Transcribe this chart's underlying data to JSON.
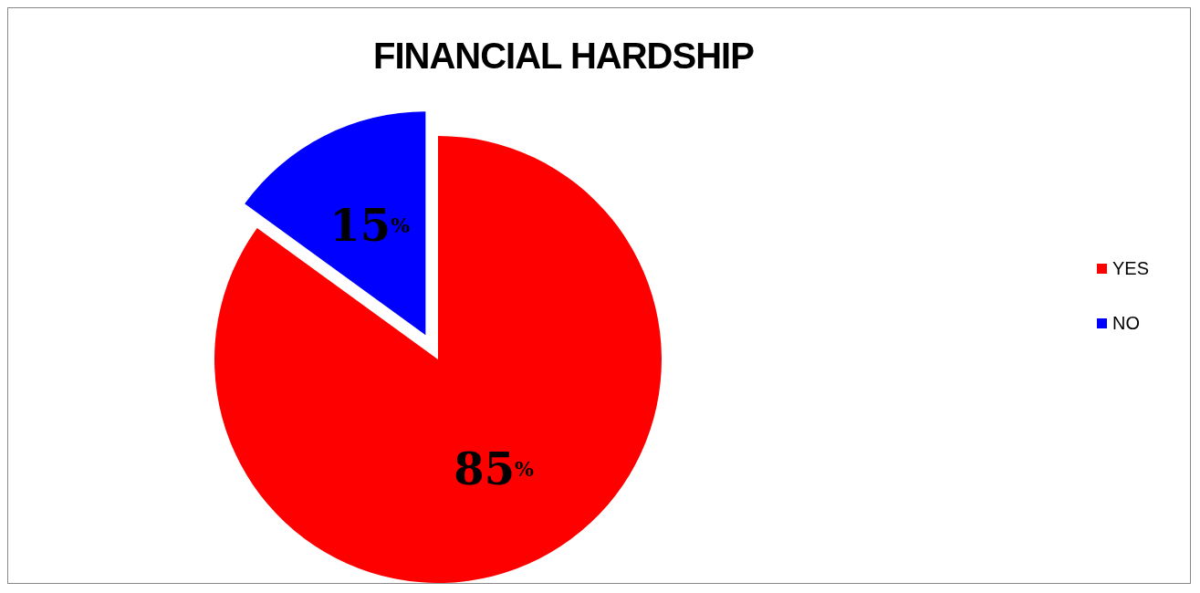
{
  "chart_data": {
    "type": "pie",
    "title": "FINANCIAL HARDSHIP",
    "categories": [
      "YES",
      "NO"
    ],
    "values": [
      85,
      15
    ],
    "colors": [
      "#ff0000",
      "#0000ff"
    ],
    "value_labels": [
      "85%",
      "15%"
    ],
    "legend": "right"
  }
}
